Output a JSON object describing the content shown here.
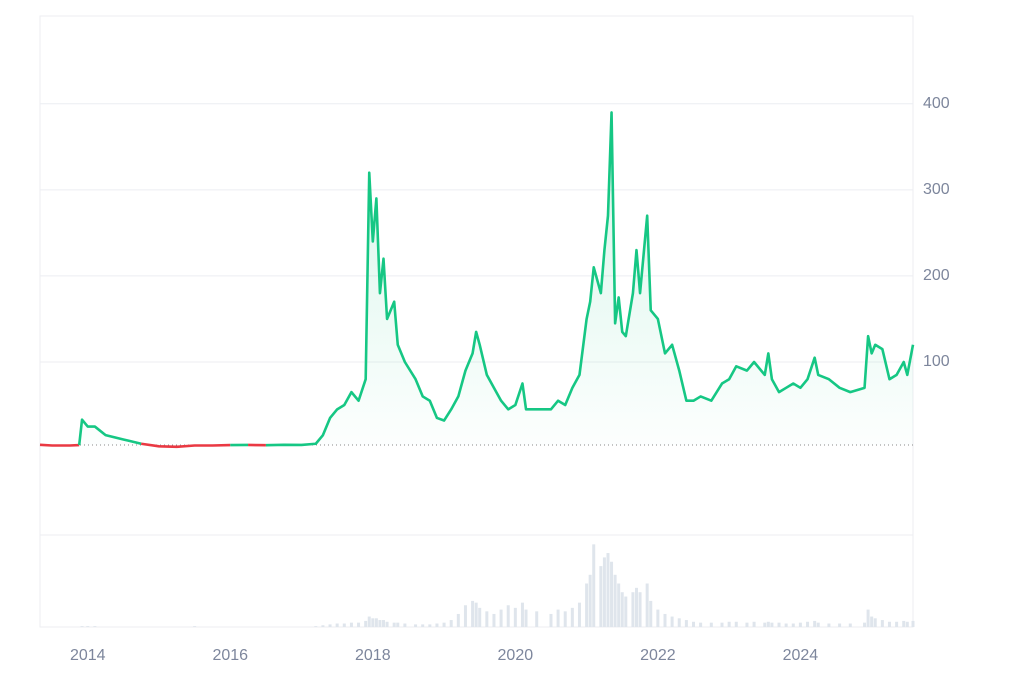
{
  "chart_data": {
    "type": "line",
    "x": [
      2013.33,
      2013.5,
      2013.75,
      2013.88,
      2013.92,
      2014.0,
      2014.1,
      2014.25,
      2014.5,
      2014.75,
      2015.0,
      2015.25,
      2015.5,
      2015.75,
      2016.0,
      2016.25,
      2016.5,
      2016.75,
      2017.0,
      2017.2,
      2017.3,
      2017.4,
      2017.5,
      2017.6,
      2017.7,
      2017.8,
      2017.9,
      2017.95,
      2018.0,
      2018.05,
      2018.1,
      2018.15,
      2018.2,
      2018.3,
      2018.35,
      2018.45,
      2018.6,
      2018.7,
      2018.8,
      2018.9,
      2019.0,
      2019.1,
      2019.2,
      2019.3,
      2019.4,
      2019.45,
      2019.5,
      2019.6,
      2019.7,
      2019.8,
      2019.9,
      2020.0,
      2020.1,
      2020.15,
      2020.3,
      2020.5,
      2020.6,
      2020.7,
      2020.8,
      2020.9,
      2021.0,
      2021.05,
      2021.1,
      2021.2,
      2021.25,
      2021.3,
      2021.35,
      2021.4,
      2021.45,
      2021.5,
      2021.55,
      2021.65,
      2021.7,
      2021.75,
      2021.85,
      2021.9,
      2022.0,
      2022.1,
      2022.2,
      2022.3,
      2022.4,
      2022.5,
      2022.6,
      2022.75,
      2022.9,
      2023.0,
      2023.1,
      2023.25,
      2023.35,
      2023.5,
      2023.55,
      2023.6,
      2023.7,
      2023.8,
      2023.9,
      2024.0,
      2024.1,
      2024.2,
      2024.25,
      2024.4,
      2024.55,
      2024.7,
      2024.9,
      2024.95,
      2025.0,
      2025.05,
      2025.15,
      2025.25,
      2025.35,
      2025.45,
      2025.5,
      2025.58
    ],
    "series": [
      {
        "values": [
          3.8,
          3,
          3,
          3.5,
          33,
          25,
          25,
          15,
          10,
          5,
          2,
          1.5,
          3,
          3,
          3.5,
          3.6,
          3.4,
          3.8,
          3.6,
          5,
          15,
          35,
          45,
          50,
          65,
          55,
          80,
          320,
          240,
          290,
          180,
          220,
          150,
          170,
          120,
          100,
          80,
          60,
          55,
          35,
          32,
          45,
          60,
          90,
          110,
          135,
          120,
          85,
          70,
          55,
          45,
          50,
          75,
          45,
          45,
          45,
          55,
          50,
          70,
          85,
          150,
          170,
          210,
          180,
          230,
          270,
          390,
          145,
          175,
          135,
          130,
          180,
          230,
          180,
          270,
          160,
          150,
          110,
          120,
          90,
          55,
          55,
          60,
          55,
          75,
          80,
          95,
          90,
          100,
          85,
          110,
          80,
          65,
          70,
          75,
          70,
          80,
          105,
          85,
          80,
          70,
          65,
          70,
          130,
          110,
          120,
          115,
          80,
          85,
          100,
          85,
          120
        ],
        "up_color": "#16c784",
        "down_color": "#ea3943"
      }
    ],
    "volume": [
      0,
      0,
      0,
      0,
      1,
      1,
      1,
      0,
      0,
      0,
      0,
      0,
      1,
      0,
      0,
      0,
      0,
      0,
      0,
      1,
      2,
      3,
      4,
      4,
      5,
      5,
      7,
      12,
      10,
      10,
      8,
      8,
      6,
      5,
      5,
      4,
      3,
      3,
      3,
      4,
      5,
      8,
      15,
      25,
      30,
      28,
      22,
      18,
      15,
      20,
      25,
      22,
      28,
      20,
      18,
      15,
      20,
      18,
      22,
      28,
      50,
      60,
      95,
      70,
      80,
      85,
      75,
      60,
      50,
      40,
      35,
      40,
      45,
      40,
      50,
      30,
      20,
      15,
      12,
      10,
      8,
      6,
      5,
      5,
      5,
      6,
      6,
      5,
      6,
      5,
      6,
      5,
      5,
      4,
      4,
      5,
      6,
      7,
      5,
      4,
      4,
      4,
      5,
      20,
      12,
      10,
      8,
      6,
      6,
      7,
      6,
      7
    ],
    "ylim": [
      -101,
      502
    ],
    "yticks": [
      100,
      200,
      300,
      400
    ],
    "volume_ylim": [
      0,
      100
    ],
    "xlim": [
      2013.33,
      2025.58
    ],
    "xticks": [
      2014,
      2016,
      2018,
      2020,
      2022,
      2024
    ],
    "baseline": 3.5,
    "grid": true
  }
}
